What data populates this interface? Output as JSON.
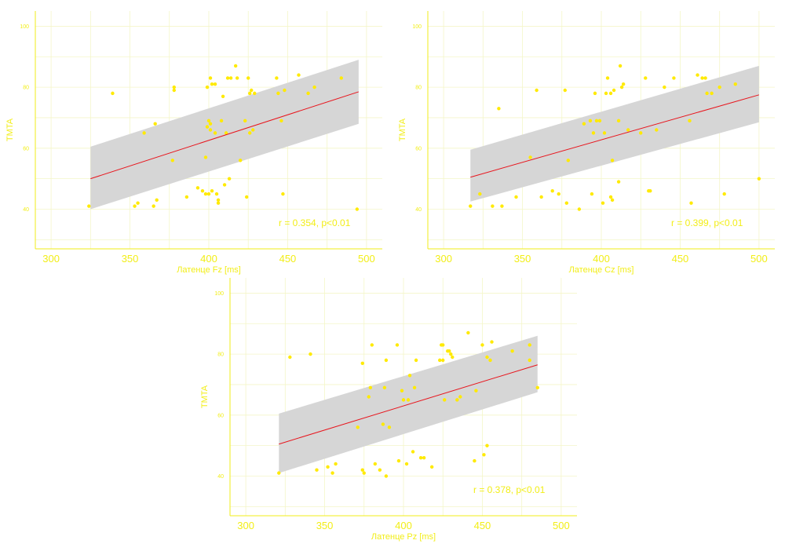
{
  "colors": {
    "points": "#ffea00",
    "axis": "#f2ee18",
    "grid": "#f4f6c8",
    "band": "#d6d6d6",
    "line": "#e8141c"
  },
  "chart_data": [
    {
      "type": "scatter",
      "xlabel": "Латенце Fz [ms]",
      "ylabel": "TMTA",
      "xlim": [
        290,
        510
      ],
      "ylim": [
        27,
        105
      ],
      "xticks": [
        300,
        350,
        400,
        450,
        500
      ],
      "yticks": [
        40,
        60,
        80,
        100
      ],
      "annotation": "r = 0.354, p<0.01",
      "regression": {
        "x": [
          325,
          495
        ],
        "y": [
          50.0,
          78.5
        ]
      },
      "band": {
        "x": [
          325,
          495
        ],
        "lower": [
          40.0,
          68.0
        ],
        "upper": [
          60.5,
          89.0
        ]
      },
      "points": [
        [
          324,
          41
        ],
        [
          339,
          78
        ],
        [
          353,
          41
        ],
        [
          355,
          42
        ],
        [
          359,
          65
        ],
        [
          365,
          41
        ],
        [
          366,
          68
        ],
        [
          367,
          43
        ],
        [
          377,
          56
        ],
        [
          378,
          80
        ],
        [
          378,
          79
        ],
        [
          386,
          44
        ],
        [
          393,
          47
        ],
        [
          396,
          46
        ],
        [
          398,
          57
        ],
        [
          398,
          45
        ],
        [
          399,
          80
        ],
        [
          399,
          67
        ],
        [
          400,
          69
        ],
        [
          400,
          45
        ],
        [
          401,
          83
        ],
        [
          401,
          68
        ],
        [
          401,
          66
        ],
        [
          402,
          81
        ],
        [
          402,
          46
        ],
        [
          404,
          81
        ],
        [
          404,
          65
        ],
        [
          405,
          45
        ],
        [
          406,
          43
        ],
        [
          406,
          42
        ],
        [
          408,
          69
        ],
        [
          409,
          77
        ],
        [
          410,
          48
        ],
        [
          411,
          65
        ],
        [
          412,
          83
        ],
        [
          413,
          50
        ],
        [
          414,
          83
        ],
        [
          417,
          87
        ],
        [
          418,
          83
        ],
        [
          420,
          56
        ],
        [
          423,
          69
        ],
        [
          424,
          44
        ],
        [
          425,
          83
        ],
        [
          426,
          78
        ],
        [
          426,
          65
        ],
        [
          427,
          79
        ],
        [
          428,
          66
        ],
        [
          429,
          78
        ],
        [
          443,
          83
        ],
        [
          444,
          78
        ],
        [
          446,
          69
        ],
        [
          447,
          45
        ],
        [
          448,
          79
        ],
        [
          457,
          84
        ],
        [
          463,
          78
        ],
        [
          467,
          80
        ],
        [
          484,
          83
        ],
        [
          494,
          40
        ]
      ]
    },
    {
      "type": "scatter",
      "xlabel": "Латенце Cz [ms]",
      "ylabel": "TMTA",
      "xlim": [
        290,
        510
      ],
      "ylim": [
        27,
        105
      ],
      "xticks": [
        300,
        350,
        400,
        450,
        500
      ],
      "yticks": [
        40,
        60,
        80,
        100
      ],
      "annotation": "r = 0.399, p<0.01",
      "regression": {
        "x": [
          317,
          500
        ],
        "y": [
          50.5,
          77.5
        ]
      },
      "band": {
        "x": [
          317,
          500
        ],
        "lower": [
          42.5,
          68.5
        ],
        "upper": [
          59.5,
          87.0
        ]
      },
      "points": [
        [
          317,
          41
        ],
        [
          323,
          45
        ],
        [
          331,
          41
        ],
        [
          335,
          73
        ],
        [
          337,
          41
        ],
        [
          346,
          44
        ],
        [
          355,
          57
        ],
        [
          359,
          79
        ],
        [
          362,
          44
        ],
        [
          369,
          46
        ],
        [
          373,
          45
        ],
        [
          377,
          79
        ],
        [
          378,
          42
        ],
        [
          379,
          56
        ],
        [
          386,
          40
        ],
        [
          389,
          68
        ],
        [
          393,
          69
        ],
        [
          394,
          45
        ],
        [
          395,
          65
        ],
        [
          396,
          78
        ],
        [
          397,
          69
        ],
        [
          399,
          69
        ],
        [
          401,
          42
        ],
        [
          402,
          65
        ],
        [
          403,
          78
        ],
        [
          404,
          83
        ],
        [
          406,
          78
        ],
        [
          406,
          44
        ],
        [
          407,
          56
        ],
        [
          407,
          43
        ],
        [
          408,
          79
        ],
        [
          411,
          69
        ],
        [
          411,
          49
        ],
        [
          412,
          87
        ],
        [
          413,
          80
        ],
        [
          414,
          81
        ],
        [
          417,
          66
        ],
        [
          425,
          65
        ],
        [
          428,
          83
        ],
        [
          430,
          46
        ],
        [
          431,
          46
        ],
        [
          435,
          66
        ],
        [
          440,
          80
        ],
        [
          446,
          83
        ],
        [
          456,
          69
        ],
        [
          457,
          42
        ],
        [
          461,
          84
        ],
        [
          464,
          83
        ],
        [
          466,
          83
        ],
        [
          467,
          78
        ],
        [
          470,
          78
        ],
        [
          475,
          80
        ],
        [
          478,
          45
        ],
        [
          485,
          81
        ],
        [
          500,
          50
        ]
      ]
    },
    {
      "type": "scatter",
      "xlabel": "Латенце Pz [ms]",
      "ylabel": "TMTA",
      "xlim": [
        290,
        510
      ],
      "ylim": [
        27,
        105
      ],
      "xticks": [
        300,
        350,
        400,
        450,
        500
      ],
      "yticks": [
        40,
        60,
        80,
        100
      ],
      "annotation": "r = 0.378, p<0.01",
      "regression": {
        "x": [
          321,
          485
        ],
        "y": [
          50.5,
          76.5
        ]
      },
      "band": {
        "x": [
          321,
          485
        ],
        "lower": [
          41.0,
          67.5
        ],
        "upper": [
          60.5,
          86.0
        ]
      },
      "points": [
        [
          321,
          41
        ],
        [
          328,
          79
        ],
        [
          341,
          80
        ],
        [
          345,
          42
        ],
        [
          352,
          43
        ],
        [
          355,
          41
        ],
        [
          357,
          44
        ],
        [
          371,
          56
        ],
        [
          374,
          77
        ],
        [
          374,
          42
        ],
        [
          375,
          41
        ],
        [
          378,
          66
        ],
        [
          379,
          69
        ],
        [
          380,
          83
        ],
        [
          382,
          44
        ],
        [
          385,
          42
        ],
        [
          387,
          57
        ],
        [
          388,
          69
        ],
        [
          389,
          78
        ],
        [
          389,
          40
        ],
        [
          391,
          56
        ],
        [
          396,
          83
        ],
        [
          397,
          45
        ],
        [
          399,
          68
        ],
        [
          400,
          65
        ],
        [
          402,
          44
        ],
        [
          403,
          65
        ],
        [
          404,
          73
        ],
        [
          406,
          48
        ],
        [
          407,
          69
        ],
        [
          408,
          78
        ],
        [
          411,
          46
        ],
        [
          413,
          46
        ],
        [
          418,
          43
        ],
        [
          423,
          78
        ],
        [
          424,
          83
        ],
        [
          425,
          83
        ],
        [
          425,
          78
        ],
        [
          426,
          65
        ],
        [
          428,
          81
        ],
        [
          429,
          81
        ],
        [
          430,
          80
        ],
        [
          431,
          79
        ],
        [
          434,
          65
        ],
        [
          436,
          66
        ],
        [
          441,
          87
        ],
        [
          445,
          45
        ],
        [
          446,
          68
        ],
        [
          450,
          83
        ],
        [
          451,
          47
        ],
        [
          453,
          50
        ],
        [
          453,
          79
        ],
        [
          455,
          78
        ],
        [
          456,
          84
        ],
        [
          469,
          81
        ],
        [
          480,
          83
        ],
        [
          480,
          78
        ],
        [
          485,
          69
        ]
      ]
    }
  ]
}
